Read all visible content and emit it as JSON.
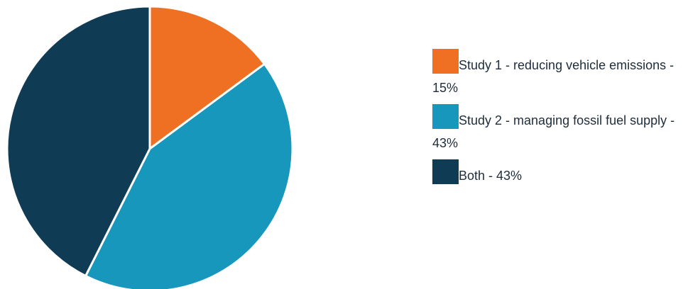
{
  "chart_data": {
    "type": "pie",
    "title": "",
    "slices": [
      {
        "label": "Study 1 - reducing vehicle emissions - 15%",
        "value": 15,
        "color": "#f07023"
      },
      {
        "label": "Study 2 - managing fossil fuel supply - 43%",
        "value": 43,
        "color": "#1697bb"
      },
      {
        "label": "Both - 43%",
        "value": 43,
        "color": "#0f3b55"
      }
    ],
    "legend": {
      "position": "right"
    },
    "start_angle": "12 o'clock",
    "direction": "clockwise"
  }
}
